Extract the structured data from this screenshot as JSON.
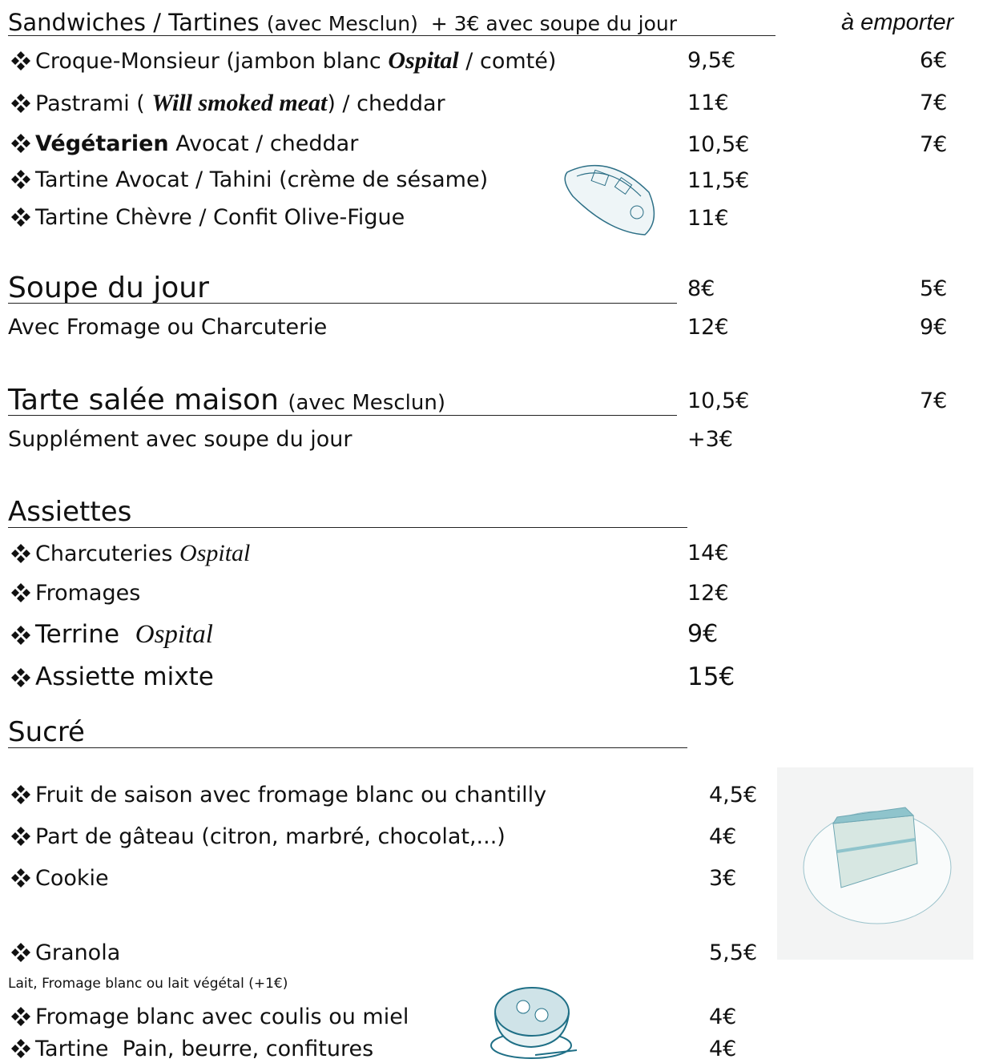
{
  "header": {
    "title": "Sandwiches / Tartines",
    "subtitle": "(avec Mesclun)  + 3€ avec soupe du jour",
    "takeaway": "à emporter"
  },
  "sandwiches": [
    {
      "name": [
        "Croque-Monsieur (jambon blanc ",
        "Ospital",
        " / comté)"
      ],
      "price": "9,5€",
      "takeaway": "6€"
    },
    {
      "name": [
        "Pastrami ( ",
        "Will smoked meat",
        ") / cheddar"
      ],
      "price": "11€",
      "takeaway": "7€"
    },
    {
      "name": [
        "Végétarien",
        " Avocat / cheddar"
      ],
      "price": "10,5€",
      "takeaway": "7€"
    },
    {
      "name": [
        "Tartine Avocat / Tahini (crème de sésame)"
      ],
      "price": "11,5€"
    },
    {
      "name": [
        "Tartine Chèvre / Confit Olive-Figue"
      ],
      "price": "11€"
    }
  ],
  "soupe": {
    "title": "Soupe du jour",
    "price": "8€",
    "takeaway": "5€",
    "extra": {
      "name": "Avec Fromage ou Charcuterie",
      "price": "12€",
      "takeaway": "9€"
    }
  },
  "tarte": {
    "title": "Tarte salée maison",
    "subtitle": "(avec Mesclun)",
    "price": "10,5€",
    "takeaway": "7€",
    "extra": {
      "name": "Supplément avec soupe du jour",
      "price": "+3€"
    }
  },
  "assiettes": {
    "title": "Assiettes",
    "items": [
      {
        "name": [
          "Charcuteries ",
          "Ospital"
        ],
        "price": "14€"
      },
      {
        "name": [
          "Fromages"
        ],
        "price": "12€"
      },
      {
        "name": [
          "Terrine  ",
          "Ospital"
        ],
        "price": "9€"
      },
      {
        "name": [
          "Assiette mixte"
        ],
        "price": "15€"
      }
    ]
  },
  "sucre": {
    "title": "Sucré",
    "items": [
      {
        "name": "Fruit de saison avec fromage blanc ou chantilly",
        "price": "4,5€"
      },
      {
        "name": "Part de gâteau (citron, marbré, chocolat,...)",
        "price": "4€"
      },
      {
        "name": "Cookie",
        "price": "3€"
      },
      {
        "name": "Granola",
        "price": "5,5€",
        "note": "Lait, Fromage blanc ou lait végétal (+1€)"
      },
      {
        "name": "Fromage blanc avec coulis ou miel",
        "price": "4€"
      },
      {
        "name": "Tartine  Pain, beurre, confitures",
        "price": "4€"
      }
    ]
  }
}
